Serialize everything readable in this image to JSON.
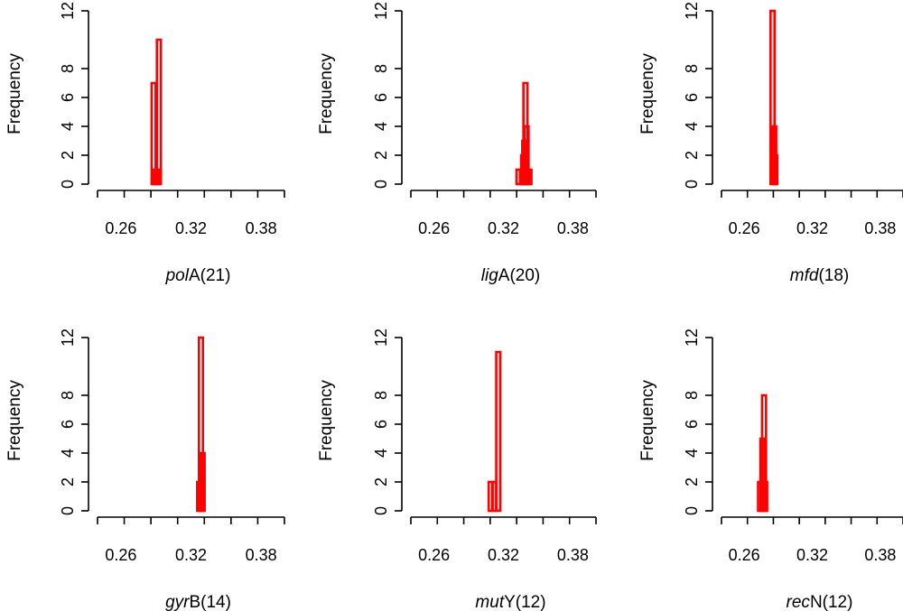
{
  "chart_data": [
    {
      "type": "bar",
      "gene": "pol",
      "suffix": "A(21)",
      "ylabel": "Frequency",
      "xticks": [
        "0.26",
        "0.32",
        "0.38"
      ],
      "yticks": [
        "0",
        "2",
        "4",
        "6",
        "8",
        "12"
      ],
      "xlim": [
        0.24,
        0.4
      ],
      "ylim": [
        0,
        12
      ],
      "bars": [
        {
          "x": 0.288,
          "value": 7
        },
        {
          "x": 0.2895,
          "value": 1
        },
        {
          "x": 0.291,
          "value": 1
        },
        {
          "x": 0.2925,
          "value": 10
        }
      ]
    },
    {
      "type": "bar",
      "gene": "lig",
      "suffix": "A(20)",
      "ylabel": "Frequency",
      "xticks": [
        "0.26",
        "0.32",
        "0.38"
      ],
      "yticks": [
        "0",
        "2",
        "4",
        "6",
        "8",
        "12"
      ],
      "xlim": [
        0.24,
        0.4
      ],
      "ylim": [
        0,
        12
      ],
      "bars": [
        {
          "x": 0.333,
          "value": 1
        },
        {
          "x": 0.336,
          "value": 1
        },
        {
          "x": 0.337,
          "value": 2
        },
        {
          "x": 0.338,
          "value": 3
        },
        {
          "x": 0.339,
          "value": 7
        },
        {
          "x": 0.34,
          "value": 4
        },
        {
          "x": 0.341,
          "value": 1
        },
        {
          "x": 0.3425,
          "value": 1
        }
      ]
    },
    {
      "type": "bar",
      "gene": "mfd",
      "suffix": "(18)",
      "ylabel": "Frequency",
      "xticks": [
        "0.26",
        "0.32",
        "0.38"
      ],
      "yticks": [
        "0",
        "2",
        "4",
        "6",
        "8",
        "12"
      ],
      "xlim": [
        0.24,
        0.4
      ],
      "ylim": [
        0,
        12
      ],
      "bars": [
        {
          "x": 0.285,
          "value": 12
        },
        {
          "x": 0.2865,
          "value": 4
        },
        {
          "x": 0.2875,
          "value": 2
        }
      ]
    },
    {
      "type": "bar",
      "gene": "gyr",
      "suffix": "B(14)",
      "ylabel": "Frequency",
      "xticks": [
        "0.26",
        "0.32",
        "0.38"
      ],
      "yticks": [
        "0",
        "2",
        "4",
        "6",
        "8",
        "12"
      ],
      "xlim": [
        0.24,
        0.4
      ],
      "ylim": [
        0,
        12
      ],
      "bars": [
        {
          "x": 0.327,
          "value": 2
        },
        {
          "x": 0.3285,
          "value": 12
        },
        {
          "x": 0.33,
          "value": 4
        }
      ]
    },
    {
      "type": "bar",
      "gene": "mut",
      "suffix": "Y(12)",
      "ylabel": "Frequency",
      "xticks": [
        "0.26",
        "0.32",
        "0.38"
      ],
      "yticks": [
        "0",
        "2",
        "4",
        "6",
        "8",
        "12"
      ],
      "xlim": [
        0.24,
        0.4
      ],
      "ylim": [
        0,
        12
      ],
      "bars": [
        {
          "x": 0.309,
          "value": 2
        },
        {
          "x": 0.312,
          "value": 2
        },
        {
          "x": 0.3155,
          "value": 11
        }
      ]
    },
    {
      "type": "bar",
      "gene": "rec",
      "suffix": "N(12)",
      "ylabel": "Frequency",
      "xticks": [
        "0.26",
        "0.32",
        "0.38"
      ],
      "yticks": [
        "0",
        "2",
        "4",
        "6",
        "8",
        "12"
      ],
      "xlim": [
        0.24,
        0.4
      ],
      "ylim": [
        0,
        12
      ],
      "bars": [
        {
          "x": 0.274,
          "value": 2
        },
        {
          "x": 0.276,
          "value": 5
        },
        {
          "x": 0.2775,
          "value": 8
        },
        {
          "x": 0.2785,
          "value": 2
        }
      ]
    }
  ],
  "colors": {
    "bar": "#ff0000",
    "axis": "#000000"
  }
}
